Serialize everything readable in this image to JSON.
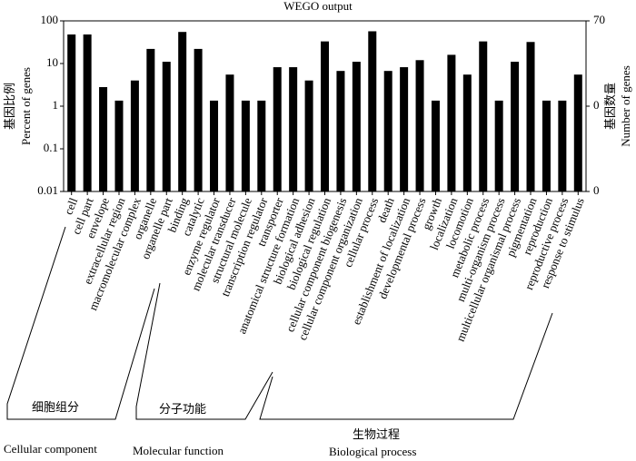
{
  "chart_data": {
    "type": "bar",
    "title": "WEGO output",
    "y_label_cn": "基因比例",
    "y_label": "Percent of genes",
    "y2_label_cn": "基因数量",
    "y2_label": "Number of genes",
    "categories": [
      "cell",
      "cell part",
      "envelope",
      "extracellular region",
      "macromolecular complex",
      "organelle",
      "organelle part",
      "binding",
      "catalytic",
      "enzyme regulator",
      "molecular transducer",
      "structural molecule",
      "transcription regulator",
      "transporter",
      "anatomical structure formation",
      "biological adhesion",
      "biological regulation",
      "cellular component biogenesis",
      "cellular component organization",
      "cellular process",
      "death",
      "establishment of localization",
      "developmental process",
      "growth",
      "localization",
      "locomotion",
      "metabolic process",
      "multi-organism process",
      "multicellular organismal process",
      "pigmentation",
      "reproduction",
      "reproductive process",
      "response to stimulus"
    ],
    "values": [
      48,
      48,
      2.8,
      1.35,
      4,
      22,
      11,
      55,
      22,
      1.35,
      5.5,
      1.35,
      1.35,
      8.2,
      8.2,
      4,
      33,
      6.7,
      11,
      57,
      6.7,
      8.2,
      12,
      1.35,
      16,
      5.5,
      33,
      1.35,
      11,
      32,
      1.35,
      1.35,
      5.5
    ],
    "color": "#000000",
    "log_scale": true,
    "ylim": [
      0.01,
      100
    ],
    "yticks": [
      0.01,
      0.1,
      1,
      10,
      100
    ],
    "y2lim": [
      0.007,
      70
    ],
    "y2ticks": [
      {
        "value": 0.007,
        "label": "0"
      },
      {
        "value": 0.7,
        "label": "0"
      },
      {
        "value": 70,
        "label": "70"
      }
    ],
    "groups": [
      {
        "label_cn": "细胞组分",
        "label": "Cellular component"
      },
      {
        "label_cn": "分子功能",
        "label": "Molecular function"
      },
      {
        "label_cn": "生物过程",
        "label": "Biological process"
      }
    ]
  }
}
